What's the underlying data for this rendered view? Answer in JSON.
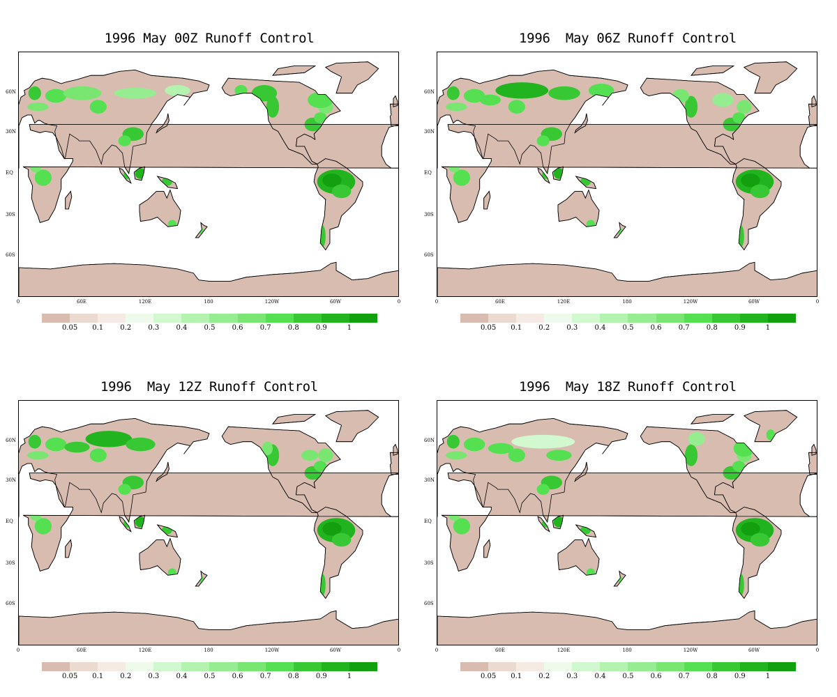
{
  "panels": [
    {
      "title": "1996 May 00Z Runoff Control",
      "variant": 0
    },
    {
      "title": "1996  May 06Z Runoff Control",
      "variant": 1
    },
    {
      "title": "1996  May 12Z Runoff Control",
      "variant": 2
    },
    {
      "title": "1996  May 18Z Runoff Control",
      "variant": 3
    }
  ],
  "lat_labels": [
    "60N",
    "30N",
    "EQ",
    "30S",
    "60S"
  ],
  "lon_labels": [
    "0",
    "60E",
    "120E",
    "180",
    "120W",
    "60W",
    "0"
  ],
  "colorbar": {
    "labels": [
      "0.05",
      "0.1",
      "0.2",
      "0.3",
      "0.4",
      "0.5",
      "0.6",
      "0.7",
      "0.8",
      "0.9",
      "1"
    ],
    "colors": [
      "#d8bcb0",
      "#eadad0",
      "#f6ebe3",
      "#eefbea",
      "#d2f8cf",
      "#b4f2b0",
      "#96ec90",
      "#78e670",
      "#54e050",
      "#38c834",
      "#22b41e",
      "#12a00e"
    ]
  },
  "land_base_color": "#d8bcb0"
}
